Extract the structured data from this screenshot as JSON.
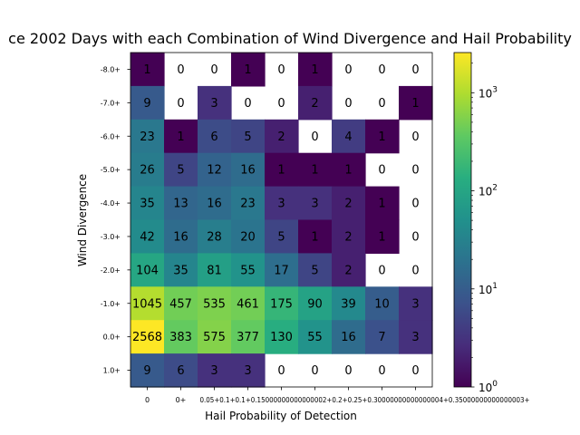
{
  "chart_data": {
    "type": "heatmap",
    "title": "ce 2002 Days with each Combination of Wind Divergence and Hail Probability",
    "xlabel": "Hail Probability of Detection",
    "ylabel": "Wind Divergence",
    "x_categories": [
      "0",
      "0+",
      "0.05+",
      "0.1+",
      "0.15000000000000002+",
      "0.2+",
      "0.25+",
      "0.30000000000000004+",
      "0.35000000000000003+"
    ],
    "x_tick_labels_shown": [
      "0",
      "0+",
      "0.05+0.1+0.1+0.15000000000000002+0.2+0.25+0.30000000000000004+0.35000000000000003+"
    ],
    "y_categories": [
      "-8.0+",
      "-7.0+",
      "-6.0+",
      "-5.0+",
      "-4.0+",
      "-3.0+",
      "-2.0+",
      "-1.0+",
      "0.0+",
      "1.0+"
    ],
    "values": [
      [
        1,
        0,
        0,
        1,
        0,
        1,
        0,
        0,
        0
      ],
      [
        9,
        0,
        3,
        0,
        0,
        2,
        0,
        0,
        1
      ],
      [
        23,
        1,
        6,
        5,
        2,
        0,
        4,
        1,
        0
      ],
      [
        26,
        5,
        12,
        16,
        1,
        1,
        1,
        0,
        0
      ],
      [
        35,
        13,
        16,
        23,
        3,
        3,
        2,
        1,
        0
      ],
      [
        42,
        16,
        28,
        20,
        5,
        1,
        2,
        1,
        0
      ],
      [
        104,
        35,
        81,
        55,
        17,
        5,
        2,
        0,
        0
      ],
      [
        1045,
        457,
        535,
        461,
        175,
        90,
        39,
        10,
        3
      ],
      [
        2568,
        383,
        575,
        377,
        130,
        55,
        16,
        7,
        3
      ],
      [
        9,
        6,
        3,
        3,
        0,
        0,
        0,
        0,
        0
      ]
    ],
    "color_scale": "viridis",
    "log_scale": true,
    "zero_cells_color": "#ffffff",
    "colorbar": {
      "range": [
        1,
        2568
      ],
      "ticks": [
        {
          "value": 1,
          "base": "10",
          "exp": "0"
        },
        {
          "value": 10,
          "base": "10",
          "exp": "1"
        },
        {
          "value": 100,
          "base": "10",
          "exp": "2"
        },
        {
          "value": 1000,
          "base": "10",
          "exp": "3"
        }
      ]
    },
    "grid": false
  }
}
